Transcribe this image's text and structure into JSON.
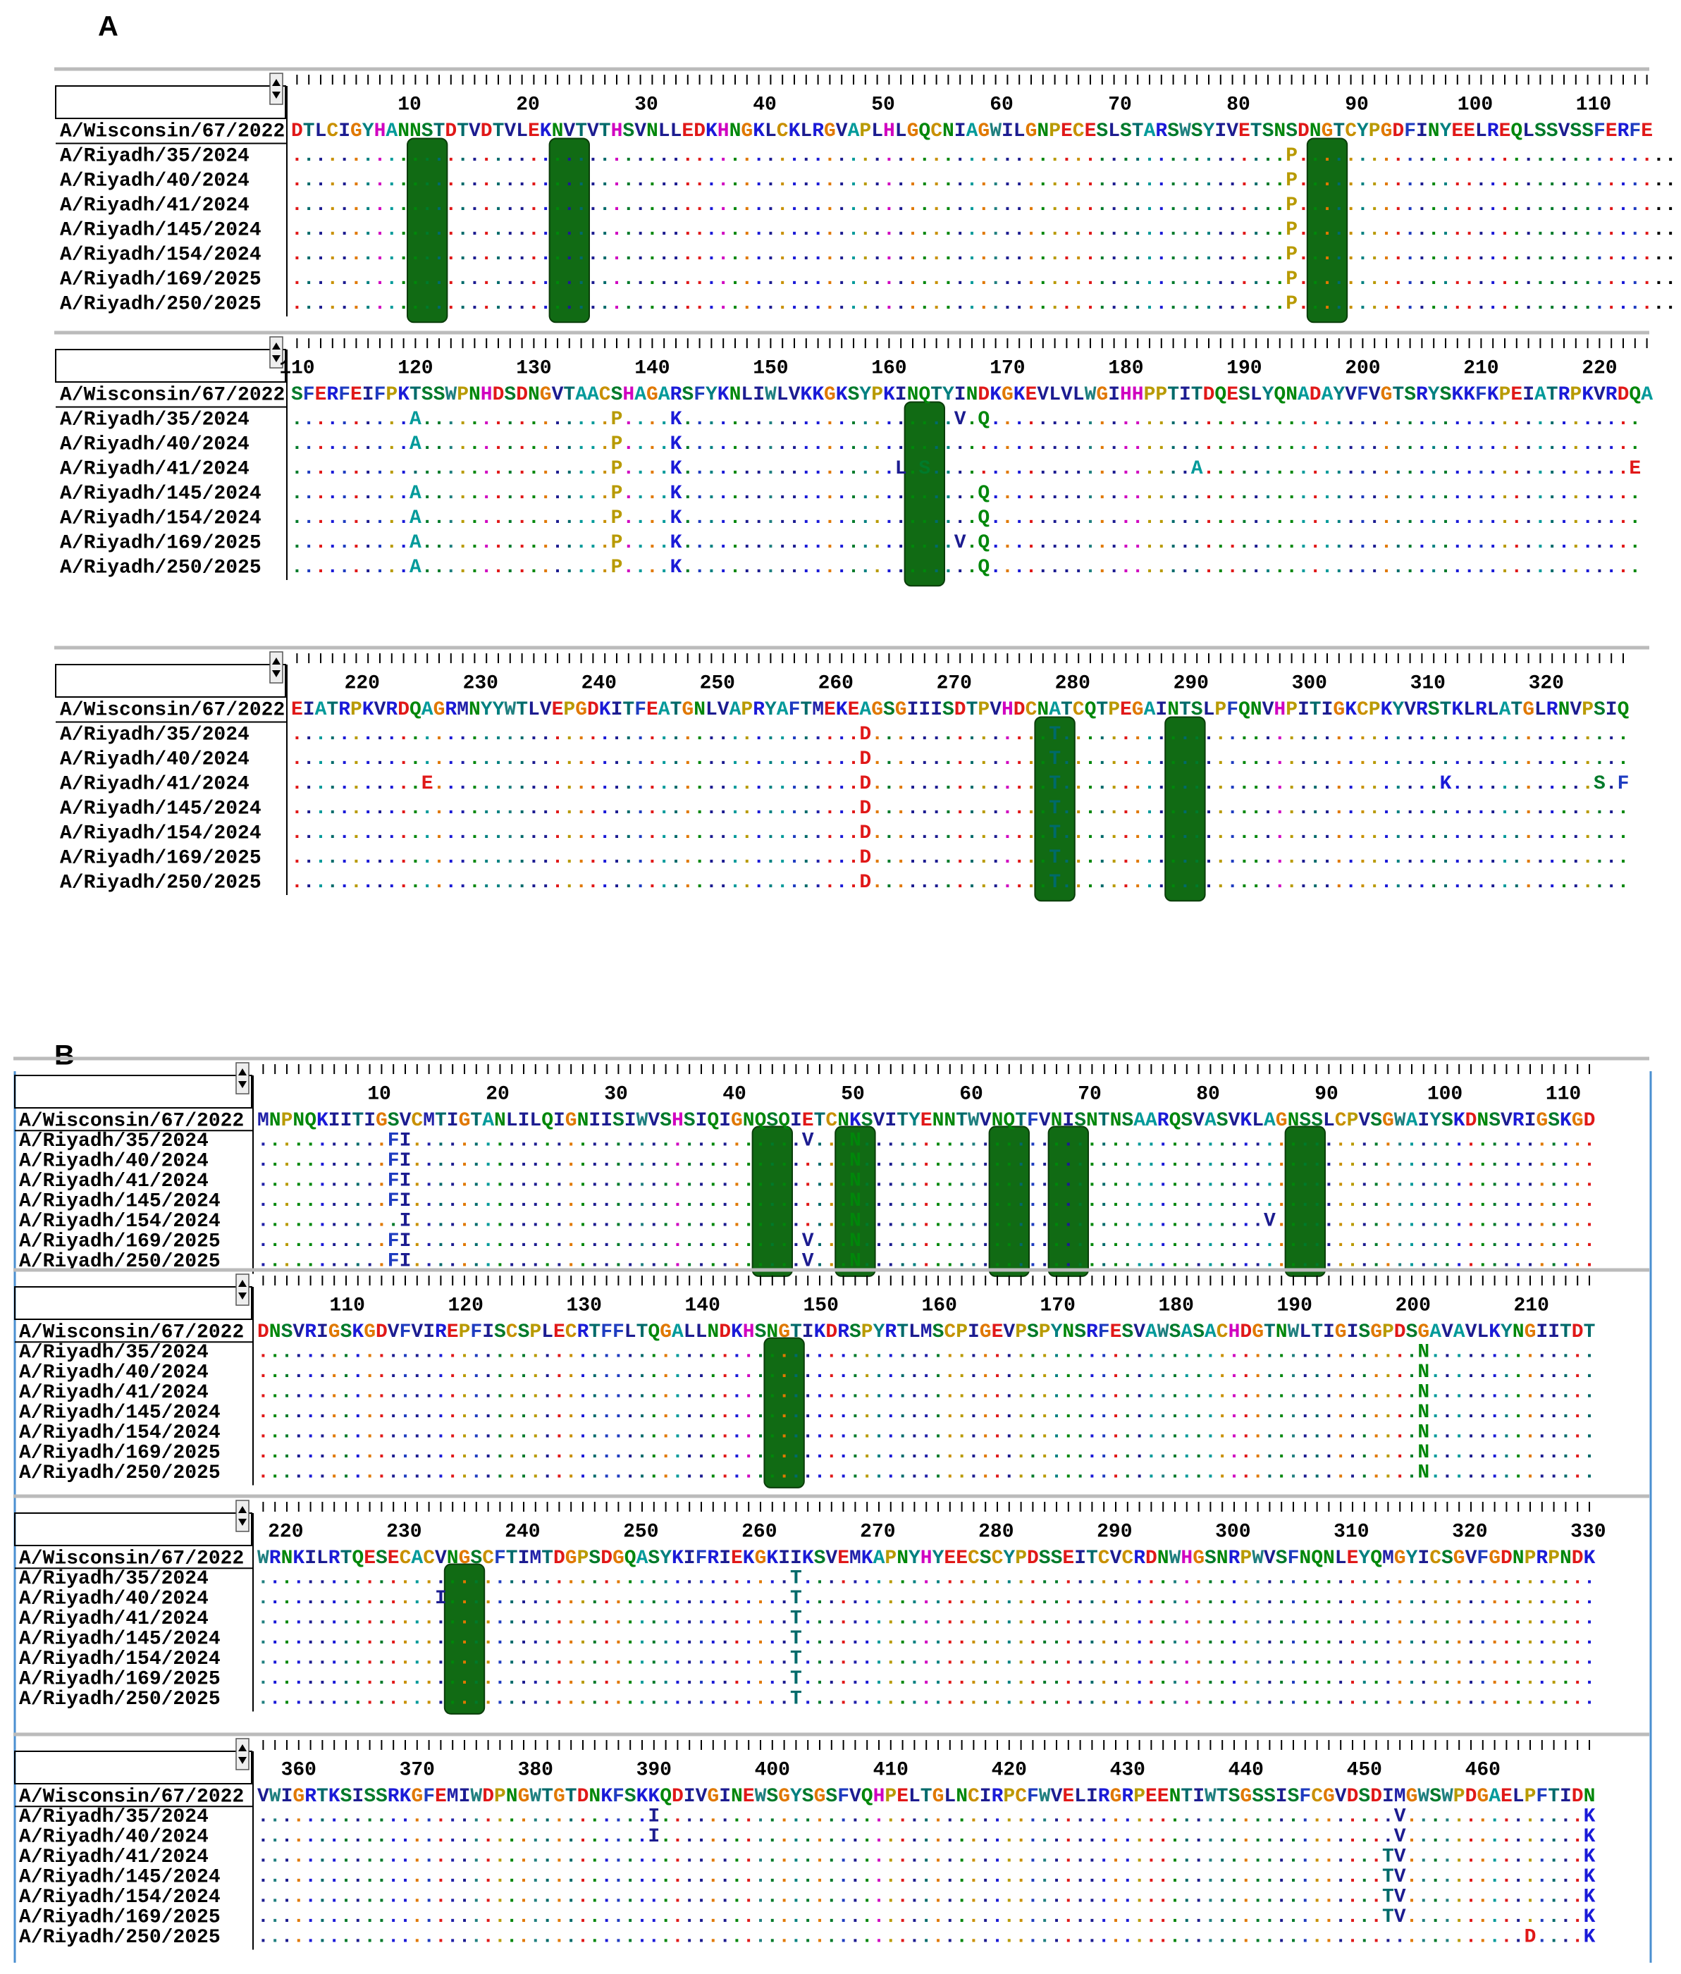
{
  "panels": [
    {
      "label": "A",
      "blocks": [
        {
          "ruler": [
            10,
            20,
            30,
            40,
            50,
            60,
            70,
            80,
            90,
            100,
            110
          ],
          "reference": {
            "name": "A/Wisconsin/67/2022",
            "sequence": "DTLCIGYHANNSTDTVDTVLEKNVTVTHSVNLLEDKHNGKLCKLRGVAPLHLGQCNIAGWILGNPECESLSTARSWSYIVETSNSDNGTCYPGDFINYEELREQLSSVSSFERFE"
          },
          "variants": [
            {
              "name": "A/Riyadh/35/2024",
              "sequence": "....................................................................................P.........................................."
            },
            {
              "name": "A/Riyadh/40/2024",
              "sequence": "....................................................................................P.........................................."
            },
            {
              "name": "A/Riyadh/41/2024",
              "sequence": "....................................................................................P.........................................."
            },
            {
              "name": "A/Riyadh/145/2024",
              "sequence": "....................................................................................P.........................................."
            },
            {
              "name": "A/Riyadh/154/2024",
              "sequence": "....................................................................................P.........................................."
            },
            {
              "name": "A/Riyadh/169/2025",
              "sequence": "....................................................................................P.........................................."
            },
            {
              "name": "A/Riyadh/250/2025",
              "sequence": "....................................................................................P.........................................."
            }
          ]
        },
        {
          "ruler": [
            110,
            120,
            130,
            140,
            150,
            160,
            170,
            180,
            190,
            200,
            210,
            220
          ],
          "reference": {
            "name": "A/Wisconsin/67/2022",
            "sequence": "SFERFEIFPKTSSWPNHDSDNGVTAACSHAGARSFYKNLIWLVKKGKSYPKINQTYINDKGKEVLVLWGIHHPPTITDQESLYQNADAYVFVGTSRYSKKFKPEIATRPKVRDQA"
          },
          "variants": [
            {
              "name": "A/Riyadh/35/2024",
              "sequence": "..........A................P....K.......................V.Q......................................................."
            },
            {
              "name": "A/Riyadh/40/2024",
              "sequence": "..........A................P....K................................................................................."
            },
            {
              "name": "A/Riyadh/41/2024",
              "sequence": "...........................P....K..................L.S......................A....................................E"
            },
            {
              "name": "A/Riyadh/145/2024",
              "sequence": "..........A................P....K.........................Q......................................................."
            },
            {
              "name": "A/Riyadh/154/2024",
              "sequence": "..........A................P....K.........................Q......................................................."
            },
            {
              "name": "A/Riyadh/169/2025",
              "sequence": "..........A................P....K.......................V.Q......................................................."
            },
            {
              "name": "A/Riyadh/250/2025",
              "sequence": "..........A................P....K.........................Q......................................................."
            }
          ]
        },
        {
          "ruler": [
            220,
            230,
            240,
            250,
            260,
            270,
            280,
            290,
            300,
            310,
            320
          ],
          "reference": {
            "name": "A/Wisconsin/67/2022",
            "sequence": "EIATRPKVRDQAGRMNYYWTLVEPGDKITFEATGNLVAPRYAFTMEKEAGSGIIISDTPVHDCNATCQTPEGAINTSLPFQNVHPITIGKCPKYVRSTKLRLATGLRNVPSIQ"
          },
          "variants": [
            {
              "name": "A/Riyadh/35/2024",
              "sequence": "................................................D...............T................................................"
            },
            {
              "name": "A/Riyadh/40/2024",
              "sequence": "................................................D...............T................................................"
            },
            {
              "name": "A/Riyadh/41/2024",
              "sequence": "...........E....................................D...............T................................K............S.F"
            },
            {
              "name": "A/Riyadh/145/2024",
              "sequence": "................................................D...............T................................................"
            },
            {
              "name": "A/Riyadh/154/2024",
              "sequence": "................................................D...............T................................................"
            },
            {
              "name": "A/Riyadh/169/2025",
              "sequence": "................................................D...............T................................................"
            },
            {
              "name": "A/Riyadh/250/2025",
              "sequence": "................................................D...............T................................................"
            }
          ]
        }
      ]
    },
    {
      "label": "B",
      "blocks": [
        {
          "ruler": [
            10,
            20,
            30,
            40,
            50,
            60,
            70,
            80,
            90,
            100,
            110
          ],
          "reference": {
            "name": "A/Wisconsin/67/2022",
            "sequence": "MNPNQKIITIGSVCMTIGTANLILQIGNIISIWVSHSIQIGNQSQIETCNKSVITYENNTWVNQTFVNISNTNSAARQSVASVKLAGNSSLCPVSGWAIYSKDNSVRIGSKGD"
          },
          "variants": [
            {
              "name": "A/Riyadh/35/2024",
              "sequence": "...........FI.................................V...N.............................................................."
            },
            {
              "name": "A/Riyadh/40/2024",
              "sequence": "...........FI.....................................N.............................................................."
            },
            {
              "name": "A/Riyadh/41/2024",
              "sequence": "...........FI.....................................N.............................................................."
            },
            {
              "name": "A/Riyadh/145/2024",
              "sequence": "...........FI.....................................N.............................................................."
            },
            {
              "name": "A/Riyadh/154/2024",
              "sequence": "............I.....................................N..................................V..........................."
            },
            {
              "name": "A/Riyadh/169/2025",
              "sequence": "...........FI.................................V...N.............................................................."
            },
            {
              "name": "A/Riyadh/250/2025",
              "sequence": "...........FI.................................V...N.............................................................."
            }
          ]
        },
        {
          "ruler": [
            110,
            120,
            130,
            140,
            150,
            160,
            170,
            180,
            190,
            200,
            210
          ],
          "reference": {
            "name": "A/Wisconsin/67/2022",
            "sequence": "DNSVRIGSKGDVFVIREPFISCSPLECRTFFLTQGALLNDKHSNGTIKDRSPYRTLMSCPIGEVPSPYNSRFESVAWSASACHDGTNWLTIGISGPDSGAVAVLKYNGIITDT"
          },
          "variants": [
            {
              "name": "A/Riyadh/35/2024",
              "sequence": "..................................................................................................N.............."
            },
            {
              "name": "A/Riyadh/40/2024",
              "sequence": "..................................................................................................N.............."
            },
            {
              "name": "A/Riyadh/41/2024",
              "sequence": "..................................................................................................N.............."
            },
            {
              "name": "A/Riyadh/145/2024",
              "sequence": "..................................................................................................N.............."
            },
            {
              "name": "A/Riyadh/154/2024",
              "sequence": "..................................................................................................N.............."
            },
            {
              "name": "A/Riyadh/169/2025",
              "sequence": "..................................................................................................N.............."
            },
            {
              "name": "A/Riyadh/250/2025",
              "sequence": "..................................................................................................N.............."
            }
          ]
        },
        {
          "ruler": [
            220,
            230,
            240,
            250,
            260,
            270,
            280,
            290,
            300,
            310,
            320,
            330
          ],
          "reference": {
            "name": "A/Wisconsin/67/2022",
            "sequence": "WRNKILRTQESECACVNGSCFTIMTDGPSDGQASYKIFRIEKGKIIKSVEMKAPNYHYEECSCYPDSSEITCVCRDNWHGSNRPWVSFNQNLEYQMGYICSGVFGDNPRPNDK"
          },
          "variants": [
            {
              "name": "A/Riyadh/35/2024",
              "sequence": ".............................................T..................................................................."
            },
            {
              "name": "A/Riyadh/40/2024",
              "sequence": "...............I.............................T..................................................................."
            },
            {
              "name": "A/Riyadh/41/2024",
              "sequence": ".............................................T..................................................................."
            },
            {
              "name": "A/Riyadh/145/2024",
              "sequence": ".............................................T..................................................................."
            },
            {
              "name": "A/Riyadh/154/2024",
              "sequence": ".............................................T..................................................................."
            },
            {
              "name": "A/Riyadh/169/2025",
              "sequence": ".............................................T..................................................................."
            },
            {
              "name": "A/Riyadh/250/2025",
              "sequence": ".............................................T..................................................................."
            }
          ]
        },
        {
          "ruler": [
            360,
            370,
            380,
            390,
            400,
            410,
            420,
            430,
            440,
            450,
            460
          ],
          "reference": {
            "name": "A/Wisconsin/67/2022",
            "sequence": "VWIGRTKSISSRKGFEMIWDPNGWTGTDNKFSKKQDIVGINEWSGYSGSFVQHPELTGLNCIRPCFWVELIRGRPEENTIWTSGSSISFCGVDSDIMGWSWPDGAELPFTIDN"
          },
          "variants": [
            {
              "name": "A/Riyadh/35/2024",
              "sequence": ".................................I..............................................................V...............K"
            },
            {
              "name": "A/Riyadh/40/2024",
              "sequence": ".................................I..............................................................V...............K"
            },
            {
              "name": "A/Riyadh/41/2024",
              "sequence": "...............................................................................................TV...............K"
            },
            {
              "name": "A/Riyadh/145/2024",
              "sequence": "...............................................................................................TV...............K"
            },
            {
              "name": "A/Riyadh/154/2024",
              "sequence": "...............................................................................................TV...............K"
            },
            {
              "name": "A/Riyadh/169/2025",
              "sequence": "...............................................................................................TV...............K"
            },
            {
              "name": "A/Riyadh/250/2025",
              "sequence": "...........................................................................................................D....K"
            }
          ]
        }
      ]
    }
  ]
}
